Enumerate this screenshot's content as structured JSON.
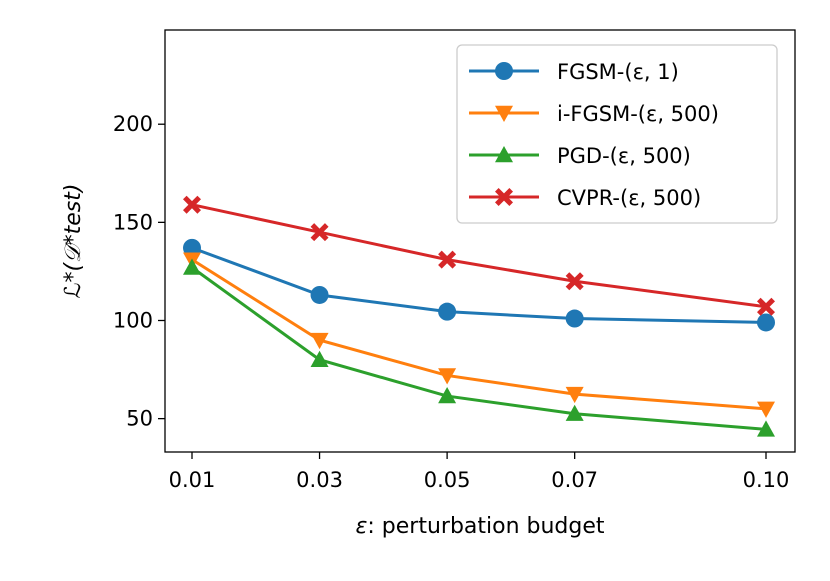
{
  "chart_data": {
    "type": "line",
    "x": [
      0.01,
      0.03,
      0.05,
      0.07,
      0.1
    ],
    "x_tick_labels": [
      "0.01",
      "0.03",
      "0.05",
      "0.07",
      "0.10"
    ],
    "xlabel_symbol": "ε",
    "xlabel_text": ": perturbation budget",
    "ylabel": "ℒ*(𝒟*test)",
    "y_ticks": [
      50,
      100,
      150,
      200
    ],
    "ylim": [
      33,
      248
    ],
    "xlim": [
      0.01,
      0.1
    ],
    "grid": false,
    "legend_position": "top-right",
    "series": [
      {
        "name": "FGSM-(ε, 1)",
        "marker": "circle",
        "color": "#1f77b4",
        "values": [
          137,
          113,
          104.5,
          101,
          99
        ]
      },
      {
        "name": "i-FGSM-(ε, 500)",
        "marker": "triangle-down",
        "color": "#ff7f0e",
        "values": [
          131,
          90,
          72,
          62.5,
          55
        ]
      },
      {
        "name": "PGD-(ε, 500)",
        "marker": "triangle-up",
        "color": "#2ca02c",
        "values": [
          127,
          80,
          61.5,
          52.5,
          44.5
        ]
      },
      {
        "name": "CVPR-(ε, 500)",
        "marker": "x-filled",
        "color": "#d62728",
        "values": [
          159,
          145,
          131,
          120,
          107
        ]
      }
    ]
  }
}
